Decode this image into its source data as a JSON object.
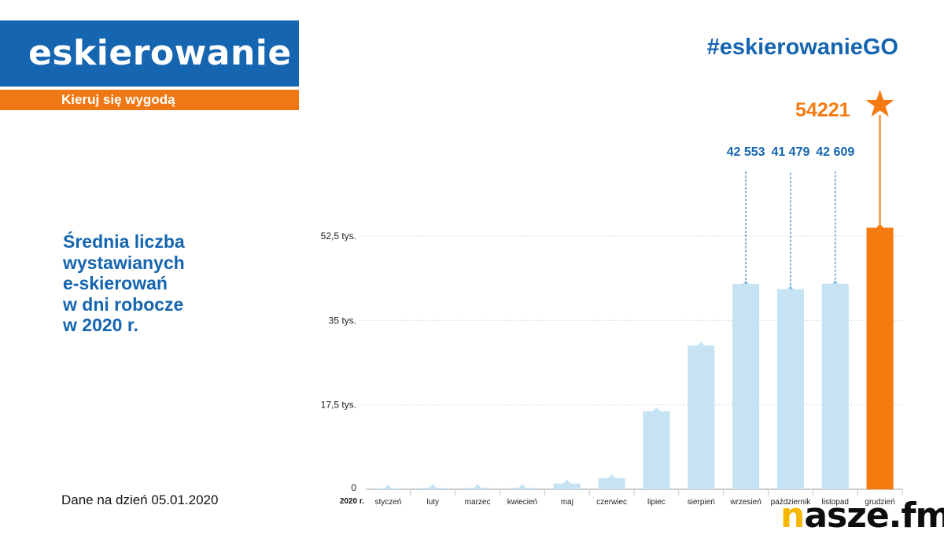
{
  "header": {
    "logo_text": "eskierowanie",
    "tagline": "Kieruj się wygodą",
    "hashtag": "#eskierowanieGO"
  },
  "sidebar": {
    "headline": "Średnia liczba\nwystawianych\ne-skierowań\nw dni robocze\nw 2020 r.",
    "date_note": "Dane na dzień 05.01.2020"
  },
  "brand": {
    "prefix": "n",
    "rest": "asze.fm"
  },
  "chart_data": {
    "type": "bar",
    "year_label": "2020 r.",
    "categories": [
      "styczeń",
      "luty",
      "marzec",
      "kwiecień",
      "maj",
      "czerwiec",
      "lipiec",
      "sierpień",
      "wrzesień",
      "październik",
      "listopad",
      "grudzień"
    ],
    "values": [
      200,
      300,
      300,
      300,
      1200,
      2300,
      16200,
      29800,
      42553,
      41479,
      42609,
      54221
    ],
    "ylim": [
      0,
      52500
    ],
    "yticks": [
      0,
      17500,
      35000,
      52500
    ],
    "ytick_labels": [
      "0",
      "17,5 tys.",
      "35 tys.",
      "52,5 tys."
    ],
    "annotations": [
      {
        "index": 8,
        "text": "42 553"
      },
      {
        "index": 9,
        "text": "41 479"
      },
      {
        "index": 10,
        "text": "42 609"
      },
      {
        "index": 11,
        "text": "54221"
      }
    ],
    "colors": {
      "bar": "#c6e3f4",
      "highlight": "#f57a0f",
      "value_label": "#1565b0",
      "grid": "#dddddd"
    },
    "grid": true
  }
}
